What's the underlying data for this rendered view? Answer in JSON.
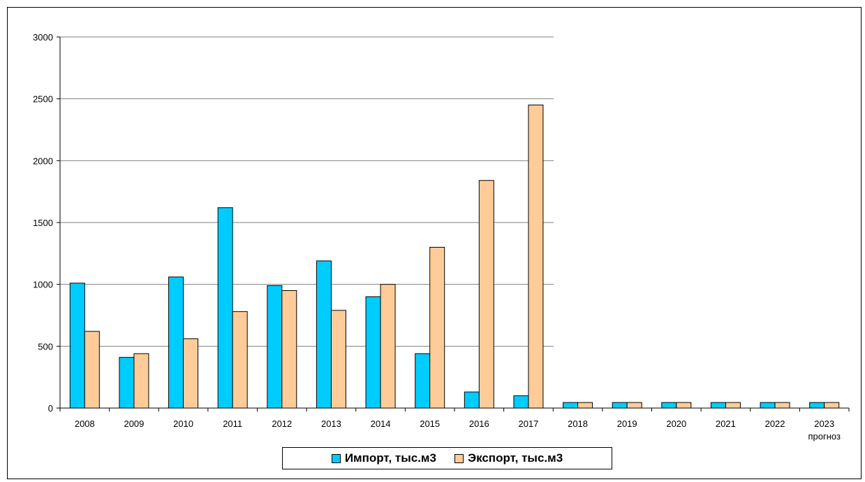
{
  "chart_data": {
    "type": "bar",
    "categories": [
      "2008",
      "2009",
      "2010",
      "2011",
      "2012",
      "2013",
      "2014",
      "2015",
      "2016",
      "2017",
      "2018",
      "2019",
      "2020",
      "2021",
      "2022",
      "2023"
    ],
    "category_sublabels": {
      "2023": "прогноз"
    },
    "series": [
      {
        "name": "Импорт, тыс.м3",
        "color": "#00ccff",
        "values": [
          1010,
          410,
          1060,
          1620,
          990,
          1190,
          900,
          440,
          130,
          100,
          45,
          45,
          45,
          45,
          45,
          45
        ]
      },
      {
        "name": "Экспорт, тыс.м3",
        "color": "#ffcc99",
        "values": [
          620,
          440,
          560,
          780,
          950,
          790,
          1000,
          1300,
          1840,
          2450,
          45,
          45,
          45,
          45,
          45,
          45
        ]
      }
    ],
    "ylim": [
      0,
      3000
    ],
    "yticks": [
      0,
      500,
      1000,
      1500,
      2000,
      2500,
      3000
    ],
    "title": "",
    "xlabel": "",
    "ylabel": "",
    "grid": true,
    "legend_position": "bottom"
  }
}
